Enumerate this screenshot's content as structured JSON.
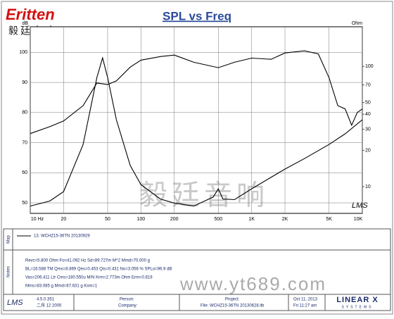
{
  "logo": {
    "brand": "Eritten",
    "subtitle": "毅廷音响"
  },
  "chart_data": {
    "type": "line",
    "title": "SPL vs Freq",
    "y_unit": "dB",
    "y2_unit": "Ohm",
    "log_x": true,
    "log_y2": true,
    "grid": true,
    "xlim": [
      10,
      10000
    ],
    "xticks": [
      {
        "value": 10,
        "label": "10 Hz"
      },
      20,
      50,
      100,
      200,
      500,
      {
        "value": 1000,
        "label": "1K"
      },
      {
        "value": 2000,
        "label": "2K"
      },
      {
        "value": 5000,
        "label": "5K"
      },
      {
        "value": 10000,
        "label": "10K"
      }
    ],
    "ylim": [
      46.5,
      108.5
    ],
    "yticks": [
      50,
      60,
      70,
      80,
      90,
      100
    ],
    "y2lim": [
      6,
      213
    ],
    "y2ticks": [
      10,
      20,
      30,
      40,
      50,
      70,
      100
    ],
    "series": [
      {
        "name": "13. WCHZ15-36TN 20130929",
        "color": "#000000",
        "x": [
          10,
          15,
          20,
          30,
          40,
          50,
          60,
          80,
          100,
          150,
          200,
          300,
          500,
          700,
          1000,
          1500,
          2000,
          3000,
          4000,
          5000,
          6000,
          7000,
          8000,
          9000,
          10000
        ],
        "values": [
          73.0,
          75.3,
          77.2,
          82.3,
          89.8,
          89.3,
          90.5,
          95.1,
          97.4,
          98.6,
          99.1,
          96.7,
          94.9,
          96.7,
          98.1,
          97.7,
          99.8,
          100.5,
          99.5,
          91.6,
          82.3,
          81.2,
          75.8,
          80.0,
          81.2
        ]
      },
      {
        "color": "#000000",
        "axis": "y2",
        "x": [
          10,
          15,
          20,
          30,
          40,
          45,
          50,
          60,
          80,
          100,
          150,
          200,
          300,
          450,
          500,
          550,
          700,
          1000,
          2000,
          3000,
          5000,
          7000,
          10000
        ],
        "values": [
          6.9,
          7.6,
          9.1,
          22.4,
          80.6,
          117.5,
          80.6,
          36,
          15,
          10.4,
          7.9,
          7.3,
          6.9,
          8.2,
          9.6,
          7.9,
          7.8,
          9.6,
          14.0,
          17.1,
          22.4,
          27.5,
          36.0
        ]
      }
    ],
    "corner_mark": "LMS"
  },
  "watermark": {
    "chinese": "毅廷音响",
    "url": "www.yt689.com"
  },
  "panel": {
    "map_label": "Map",
    "notes_label": "Notes",
    "notes": [
      "Revc=5.800 Ohm  Fo=41.092 Hz  Sd=89.727m M^2  Mmd=70.000 g",
      "BL=16.588 TM  Qms=8.869  Qes=0.453  Qts=0.431  No=3.056 %  SPLo=96.9 dB",
      "Vas=206.411 Ltr  Cms=180.550u M/N  Krm=2.773m Ohm  Erm=0.819",
      "Mms=83.085 g  Mmd=67.631 g  Kxm=1"
    ],
    "footer": {
      "app": "LMS",
      "version": "4.5.0.351",
      "date": "二月 12 2005",
      "person": "Person:",
      "company": "Company:",
      "project": "Project:",
      "file": "File: WCHZ15-36TN 20130628.lib",
      "day": "Oct 11, 2013",
      "time": "Fri 11:27 am",
      "vendor": "LINEAR X",
      "vendor_sub": "SYSTEMS"
    }
  }
}
